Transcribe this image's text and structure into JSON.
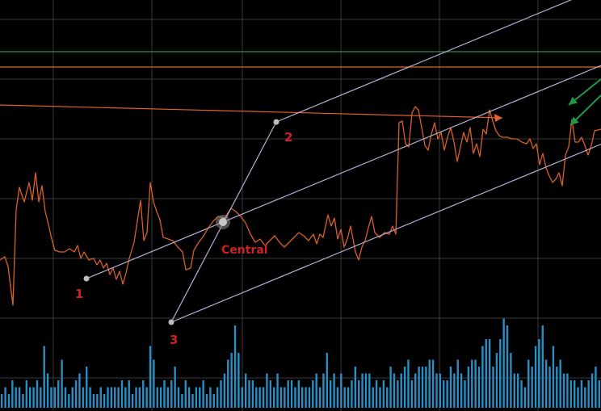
{
  "chart_data": {
    "type": "line",
    "title": "",
    "xlabel": "",
    "ylabel": "",
    "grid": true,
    "colors": {
      "background": "#000000",
      "grid": "#3a3a3a",
      "price": "#d9602a",
      "volume": "#2a8fc4",
      "channel": "#b8aed6",
      "green_level": "#2f8a4a",
      "orange_level": "#e0622a",
      "arrow_green": "#1f9a45",
      "point_label": "#d21f1f"
    },
    "price": [
      [
        0,
        322
      ],
      [
        6,
        318
      ],
      [
        10,
        330
      ],
      [
        16,
        378
      ],
      [
        20,
        260
      ],
      [
        24,
        232
      ],
      [
        30,
        250
      ],
      [
        36,
        226
      ],
      [
        40,
        248
      ],
      [
        44,
        214
      ],
      [
        48,
        250
      ],
      [
        52,
        230
      ],
      [
        56,
        262
      ],
      [
        60,
        278
      ],
      [
        64,
        296
      ],
      [
        68,
        310
      ],
      [
        74,
        312
      ],
      [
        80,
        312
      ],
      [
        86,
        308
      ],
      [
        92,
        312
      ],
      [
        96,
        304
      ],
      [
        100,
        320
      ],
      [
        104,
        312
      ],
      [
        110,
        322
      ],
      [
        116,
        320
      ],
      [
        120,
        328
      ],
      [
        124,
        322
      ],
      [
        128,
        332
      ],
      [
        132,
        326
      ],
      [
        136,
        340
      ],
      [
        140,
        332
      ],
      [
        144,
        346
      ],
      [
        148,
        336
      ],
      [
        152,
        352
      ],
      [
        156,
        338
      ],
      [
        160,
        320
      ],
      [
        166,
        300
      ],
      [
        170,
        274
      ],
      [
        174,
        248
      ],
      [
        178,
        298
      ],
      [
        182,
        288
      ],
      [
        186,
        226
      ],
      [
        190,
        250
      ],
      [
        194,
        262
      ],
      [
        198,
        272
      ],
      [
        202,
        294
      ],
      [
        208,
        296
      ],
      [
        214,
        298
      ],
      [
        220,
        306
      ],
      [
        226,
        312
      ],
      [
        230,
        334
      ],
      [
        236,
        332
      ],
      [
        240,
        310
      ],
      [
        246,
        300
      ],
      [
        252,
        292
      ],
      [
        258,
        282
      ],
      [
        264,
        274
      ],
      [
        270,
        268
      ],
      [
        278,
        270
      ],
      [
        286,
        258
      ],
      [
        292,
        262
      ],
      [
        298,
        268
      ],
      [
        304,
        276
      ],
      [
        310,
        290
      ],
      [
        316,
        300
      ],
      [
        322,
        296
      ],
      [
        328,
        304
      ],
      [
        334,
        298
      ],
      [
        340,
        292
      ],
      [
        346,
        300
      ],
      [
        352,
        306
      ],
      [
        358,
        300
      ],
      [
        364,
        294
      ],
      [
        370,
        288
      ],
      [
        376,
        292
      ],
      [
        382,
        298
      ],
      [
        388,
        290
      ],
      [
        392,
        302
      ],
      [
        396,
        290
      ],
      [
        400,
        294
      ],
      [
        406,
        266
      ],
      [
        410,
        280
      ],
      [
        414,
        270
      ],
      [
        418,
        296
      ],
      [
        422,
        284
      ],
      [
        426,
        306
      ],
      [
        430,
        296
      ],
      [
        434,
        280
      ],
      [
        440,
        312
      ],
      [
        444,
        322
      ],
      [
        448,
        306
      ],
      [
        452,
        298
      ],
      [
        456,
        282
      ],
      [
        460,
        268
      ],
      [
        464,
        288
      ],
      [
        470,
        294
      ],
      [
        476,
        288
      ],
      [
        482,
        290
      ],
      [
        486,
        280
      ],
      [
        490,
        290
      ],
      [
        494,
        152
      ],
      [
        498,
        150
      ],
      [
        502,
        178
      ],
      [
        506,
        182
      ],
      [
        510,
        140
      ],
      [
        514,
        132
      ],
      [
        518,
        136
      ],
      [
        522,
        158
      ],
      [
        526,
        180
      ],
      [
        530,
        186
      ],
      [
        534,
        166
      ],
      [
        538,
        152
      ],
      [
        542,
        172
      ],
      [
        546,
        164
      ],
      [
        550,
        186
      ],
      [
        554,
        170
      ],
      [
        558,
        158
      ],
      [
        562,
        176
      ],
      [
        566,
        200
      ],
      [
        570,
        182
      ],
      [
        574,
        164
      ],
      [
        578,
        176
      ],
      [
        582,
        158
      ],
      [
        586,
        190
      ],
      [
        590,
        178
      ],
      [
        594,
        194
      ],
      [
        598,
        160
      ],
      [
        602,
        166
      ],
      [
        606,
        136
      ],
      [
        610,
        150
      ],
      [
        614,
        162
      ],
      [
        618,
        168
      ],
      [
        622,
        170
      ],
      [
        628,
        170
      ],
      [
        634,
        172
      ],
      [
        640,
        172
      ],
      [
        646,
        176
      ],
      [
        652,
        178
      ],
      [
        656,
        172
      ],
      [
        660,
        184
      ],
      [
        664,
        178
      ],
      [
        668,
        204
      ],
      [
        672,
        190
      ],
      [
        676,
        208
      ],
      [
        680,
        218
      ],
      [
        684,
        226
      ],
      [
        688,
        222
      ],
      [
        692,
        214
      ],
      [
        696,
        230
      ],
      [
        700,
        192
      ],
      [
        704,
        182
      ],
      [
        708,
        148
      ],
      [
        712,
        176
      ],
      [
        716,
        176
      ],
      [
        720,
        170
      ],
      [
        724,
        180
      ],
      [
        728,
        192
      ],
      [
        732,
        180
      ],
      [
        736,
        162
      ],
      [
        744,
        160
      ]
    ],
    "volume": [
      2,
      3,
      2,
      4,
      3,
      3,
      2,
      4,
      3,
      3,
      4,
      3,
      9,
      5,
      3,
      3,
      4,
      7,
      3,
      2,
      3,
      4,
      5,
      3,
      6,
      3,
      2,
      2,
      3,
      2,
      3,
      3,
      3,
      3,
      4,
      3,
      4,
      2,
      3,
      3,
      4,
      3,
      9,
      7,
      3,
      3,
      4,
      3,
      4,
      6,
      3,
      2,
      4,
      3,
      2,
      3,
      3,
      4,
      2,
      3,
      2,
      3,
      4,
      5,
      7,
      8,
      12,
      8,
      3,
      5,
      4,
      4,
      3,
      3,
      3,
      5,
      4,
      3,
      5,
      3,
      3,
      4,
      4,
      3,
      4,
      3,
      3,
      3,
      4,
      5,
      3,
      5,
      8,
      4,
      5,
      3,
      5,
      3,
      3,
      4,
      6,
      4,
      5,
      5,
      5,
      3,
      4,
      3,
      4,
      3,
      6,
      5,
      4,
      5,
      6,
      7,
      4,
      5,
      6,
      6,
      6,
      7,
      7,
      5,
      5,
      4,
      4,
      6,
      5,
      7,
      5,
      4,
      6,
      7,
      7,
      6,
      9,
      10,
      10,
      6,
      8,
      10,
      13,
      12,
      8,
      5,
      5,
      4,
      3,
      7,
      6,
      9,
      10,
      12,
      7,
      6,
      9,
      6,
      7,
      5,
      5,
      4,
      4,
      3,
      4,
      3,
      4,
      5,
      6,
      4
    ],
    "levels": [
      {
        "y": 64,
        "color": "green_level"
      },
      {
        "y": 83,
        "color": "orange_level"
      }
    ],
    "trend_line": {
      "from": [
        0,
        130
      ],
      "to": [
        622,
        146
      ]
    },
    "pitchfork": {
      "p1": [
        107,
        345
      ],
      "p2": [
        342,
        151
      ],
      "p3": [
        212,
        399
      ],
      "central": [
        276,
        275
      ],
      "labels": {
        "p1": "1",
        "p2": "2",
        "p3": "3",
        "central": "Central"
      }
    }
  }
}
